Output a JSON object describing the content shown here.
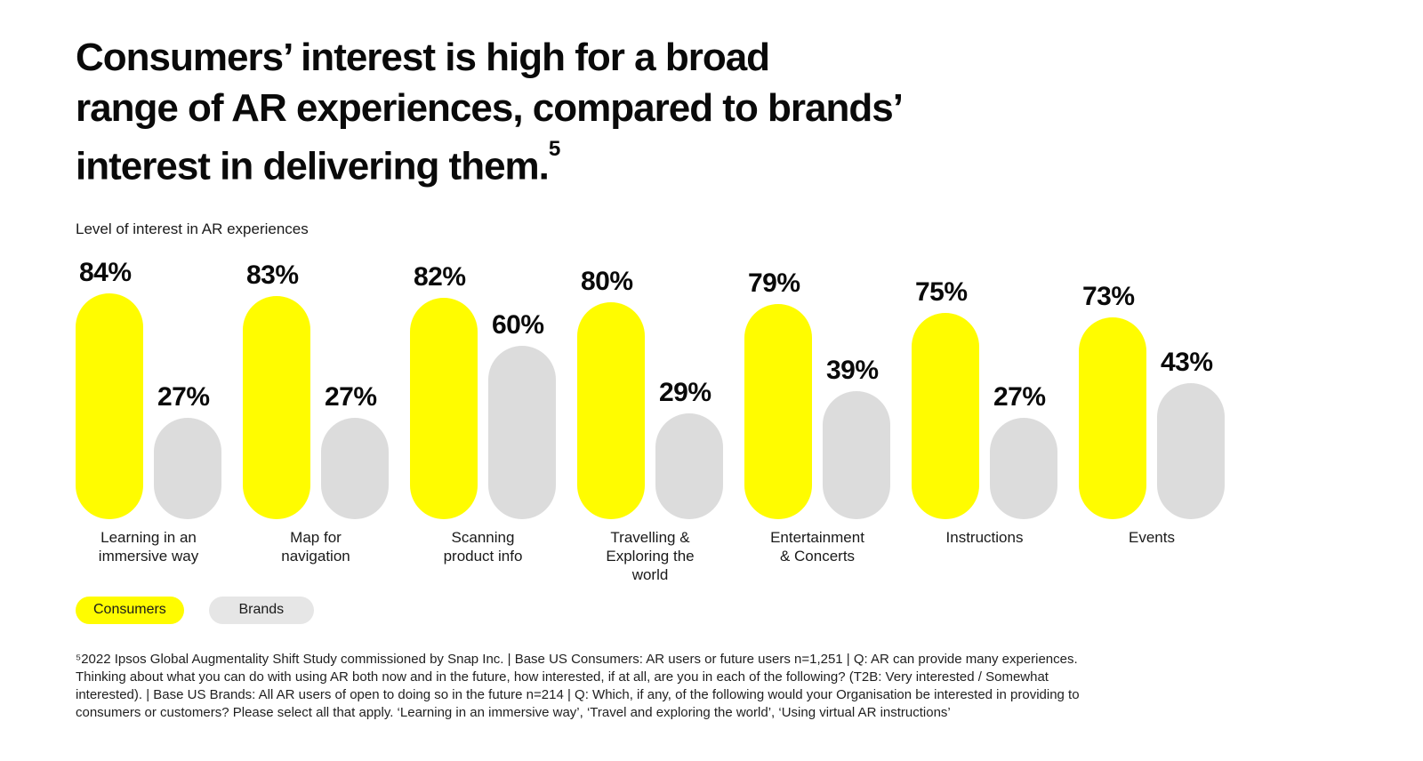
{
  "header": {
    "title_lines": [
      "Consumers’ interest is high for a broad",
      "range of AR experiences, compared to brands’",
      "interest in delivering them."
    ],
    "title_superscript": "5",
    "subtitle": "Level of interest in AR experiences"
  },
  "chart_data": {
    "type": "bar",
    "title": "Level of interest in AR experiences",
    "categories": [
      "Learning in an\nimmersive way",
      "Map for\nnavigation",
      "Scanning\nproduct info",
      "Travelling &\nExploring the\nworld",
      "Entertainment\n& Concerts",
      "Instructions",
      "Events"
    ],
    "series": [
      {
        "name": "Consumers",
        "color": "#FFFC00",
        "values": [
          84,
          83,
          82,
          80,
          79,
          75,
          73
        ]
      },
      {
        "name": "Brands",
        "color": "#DCDCDC",
        "values": [
          27,
          27,
          60,
          29,
          39,
          27,
          43
        ]
      }
    ],
    "value_suffix": "%",
    "ylim": [
      0,
      100
    ],
    "grid": false,
    "axis_labels_shown": false,
    "legend_position": "bottom-left",
    "bar_style": "rounded-capsule"
  },
  "legend": {
    "items": [
      {
        "label": "Consumers",
        "color": "#FFFC00"
      },
      {
        "label": "Brands",
        "color": "#E6E6E6"
      }
    ]
  },
  "footnote": {
    "lines": [
      "⁵2022 Ipsos Global Augmentality Shift Study commissioned by Snap Inc. | Base US Consumers: AR users or future users n=1,251 | Q: AR can provide many experiences.",
      "Thinking about what you can do with using AR both now and in the future, how interested, if at all, are you in each of the following? (T2B: Very interested / Somewhat",
      "interested). | Base US Brands: All AR users of open to doing so in the future n=214 | Q: Which, if any, of the following would your Organisation be interested in providing to",
      "consumers or customers? Please select all that apply. ‘Learning in an immersive way’, ‘Travel and exploring the world’, ‘Using virtual AR instructions’"
    ]
  }
}
